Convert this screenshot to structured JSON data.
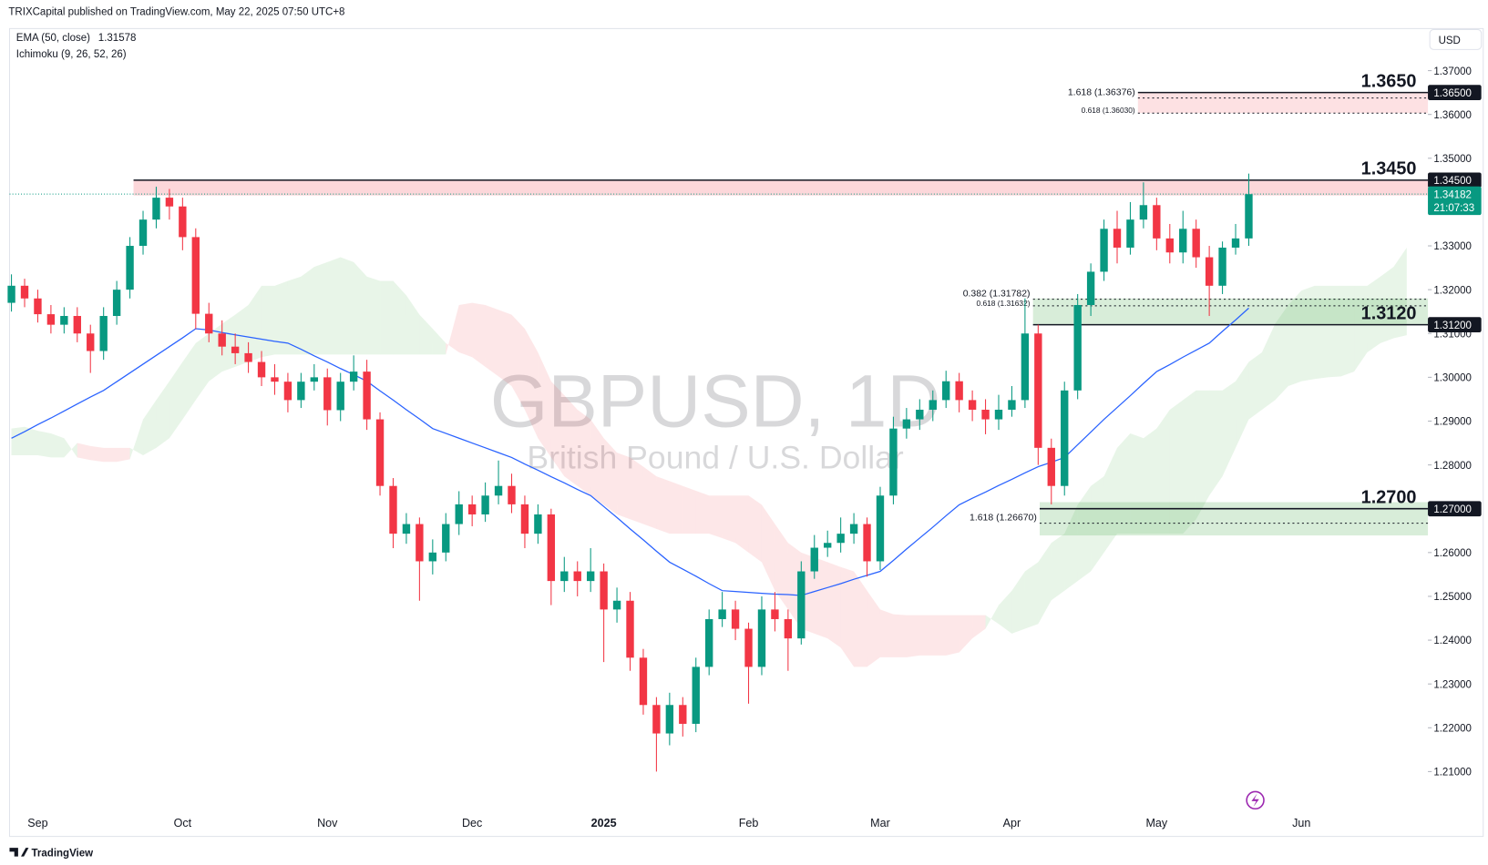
{
  "header": {
    "publisher": "TRIXCapital published on TradingView.com, May 22, 2025 07:50 UTC+8",
    "logo": "TradingView"
  },
  "chart_data": {
    "type": "candlestick",
    "title": "GBPUSD, 1D",
    "subtitle": "British Pound / U.S. Dollar",
    "currency": "USD",
    "indicators": [
      {
        "label": "EMA (50, close)",
        "last": 1.31578,
        "color": "#2962ff"
      },
      {
        "label": "Ichimoku (9, 26, 52, 26)"
      }
    ],
    "categories": [
      null,
      null,
      "Sep",
      null,
      null,
      null,
      null,
      null,
      null,
      null,
      null,
      null,
      null,
      "Oct",
      null,
      null,
      null,
      null,
      null,
      null,
      null,
      null,
      null,
      null,
      "Nov",
      null,
      null,
      null,
      null,
      null,
      null,
      null,
      null,
      null,
      null,
      "Dec",
      null,
      null,
      null,
      null,
      null,
      null,
      null,
      null,
      null,
      "2025",
      null,
      null,
      null,
      null,
      null,
      null,
      null,
      null,
      null,
      null,
      "Feb",
      null,
      null,
      null,
      null,
      null,
      null,
      null,
      null,
      null,
      "Mar",
      null,
      null,
      null,
      null,
      null,
      null,
      null,
      null,
      null,
      "Apr",
      null,
      null,
      null,
      null,
      null,
      null,
      null,
      null,
      null,
      null,
      "May",
      null,
      null,
      null,
      null,
      null,
      null,
      null,
      null,
      null,
      null,
      "Jun",
      null,
      null,
      null,
      null,
      null,
      null,
      null,
      null
    ],
    "up_color": "#089981",
    "down_color": "#f23645",
    "candles": [
      [
        1.317,
        1.3235,
        1.315,
        1.3209
      ],
      [
        1.3209,
        1.3225,
        1.316,
        1.318
      ],
      [
        1.318,
        1.32,
        1.3125,
        1.3144
      ],
      [
        1.3144,
        1.3165,
        1.31,
        1.312
      ],
      [
        1.312,
        1.316,
        1.31,
        1.314
      ],
      [
        1.314,
        1.316,
        1.308,
        1.31
      ],
      [
        1.31,
        1.312,
        1.301,
        1.306
      ],
      [
        1.306,
        1.316,
        1.304,
        1.314
      ],
      [
        1.314,
        1.322,
        1.312,
        1.32
      ],
      [
        1.32,
        1.332,
        1.318,
        1.33
      ],
      [
        1.33,
        1.338,
        1.328,
        1.336
      ],
      [
        1.336,
        1.3435,
        1.334,
        1.341
      ],
      [
        1.341,
        1.343,
        1.336,
        1.339
      ],
      [
        1.339,
        1.341,
        1.329,
        1.332
      ],
      [
        1.332,
        1.334,
        1.311,
        1.3145
      ],
      [
        1.3145,
        1.317,
        1.308,
        1.31
      ],
      [
        1.31,
        1.313,
        1.305,
        1.307
      ],
      [
        1.307,
        1.31,
        1.303,
        1.3055
      ],
      [
        1.3055,
        1.308,
        1.301,
        1.3035
      ],
      [
        1.3035,
        1.306,
        1.298,
        1.3
      ],
      [
        1.3,
        1.303,
        1.296,
        1.299
      ],
      [
        1.299,
        1.301,
        1.292,
        1.2948
      ],
      [
        1.2948,
        1.301,
        1.293,
        1.299
      ],
      [
        1.299,
        1.303,
        1.297,
        1.3
      ],
      [
        1.3,
        1.302,
        1.289,
        1.2925
      ],
      [
        1.2925,
        1.301,
        1.29,
        1.299
      ],
      [
        1.299,
        1.305,
        1.297,
        1.3013
      ],
      [
        1.3013,
        1.304,
        1.288,
        1.2904
      ],
      [
        1.2904,
        1.292,
        1.273,
        1.2752
      ],
      [
        1.2752,
        1.277,
        1.261,
        1.2643
      ],
      [
        1.2643,
        1.269,
        1.262,
        1.2665
      ],
      [
        1.2665,
        1.268,
        1.249,
        1.258
      ],
      [
        1.258,
        1.263,
        1.255,
        1.26
      ],
      [
        1.26,
        1.269,
        1.258,
        1.2665
      ],
      [
        1.2665,
        1.274,
        1.264,
        1.271
      ],
      [
        1.271,
        1.273,
        1.266,
        1.2687
      ],
      [
        1.2687,
        1.276,
        1.267,
        1.273
      ],
      [
        1.273,
        1.281,
        1.271,
        1.2752
      ],
      [
        1.2752,
        1.278,
        1.269,
        1.271
      ],
      [
        1.271,
        1.273,
        1.261,
        1.2643
      ],
      [
        1.2643,
        1.271,
        1.262,
        1.2687
      ],
      [
        1.2687,
        1.27,
        1.248,
        1.2535
      ],
      [
        1.2535,
        1.259,
        1.251,
        1.2557
      ],
      [
        1.2557,
        1.258,
        1.25,
        1.2535
      ],
      [
        1.2535,
        1.261,
        1.251,
        1.2557
      ],
      [
        1.2557,
        1.2575,
        1.235,
        1.247
      ],
      [
        1.247,
        1.252,
        1.244,
        1.249
      ],
      [
        1.249,
        1.251,
        1.233,
        1.236
      ],
      [
        1.236,
        1.238,
        1.223,
        1.2252
      ],
      [
        1.2252,
        1.227,
        1.21,
        1.2187
      ],
      [
        1.2187,
        1.228,
        1.216,
        1.2252
      ],
      [
        1.2252,
        1.227,
        1.218,
        1.2209
      ],
      [
        1.2209,
        1.236,
        1.219,
        1.2339
      ],
      [
        1.2339,
        1.247,
        1.232,
        1.2448
      ],
      [
        1.2448,
        1.251,
        1.243,
        1.247
      ],
      [
        1.247,
        1.249,
        1.24,
        1.2426
      ],
      [
        1.2426,
        1.244,
        1.2255,
        1.2339
      ],
      [
        1.2339,
        1.25,
        1.232,
        1.247
      ],
      [
        1.247,
        1.251,
        1.242,
        1.2448
      ],
      [
        1.2448,
        1.247,
        1.233,
        1.2404
      ],
      [
        1.2404,
        1.258,
        1.239,
        1.2557
      ],
      [
        1.2557,
        1.264,
        1.254,
        1.2611
      ],
      [
        1.2611,
        1.265,
        1.259,
        1.2622
      ],
      [
        1.2622,
        1.268,
        1.26,
        1.2643
      ],
      [
        1.2643,
        1.269,
        1.262,
        1.2665
      ],
      [
        1.2665,
        1.268,
        1.2545,
        1.258
      ],
      [
        1.258,
        1.275,
        1.256,
        1.273
      ],
      [
        1.273,
        1.291,
        1.271,
        1.2883
      ],
      [
        1.2883,
        1.293,
        1.286,
        1.2904
      ],
      [
        1.2904,
        1.295,
        1.288,
        1.2926
      ],
      [
        1.2926,
        1.297,
        1.29,
        1.2948
      ],
      [
        1.2948,
        1.3015,
        1.293,
        1.2991
      ],
      [
        1.2991,
        1.301,
        1.292,
        1.2948
      ],
      [
        1.2948,
        1.297,
        1.29,
        1.2926
      ],
      [
        1.2926,
        1.295,
        1.287,
        1.2904
      ],
      [
        1.2904,
        1.296,
        1.288,
        1.2926
      ],
      [
        1.2926,
        1.298,
        1.291,
        1.2948
      ],
      [
        1.2948,
        1.318,
        1.293,
        1.31
      ],
      [
        1.31,
        1.312,
        1.28,
        1.2839
      ],
      [
        1.2839,
        1.286,
        1.271,
        1.2752
      ],
      [
        1.2752,
        1.299,
        1.273,
        1.297
      ],
      [
        1.297,
        1.319,
        1.295,
        1.3165
      ],
      [
        1.3165,
        1.326,
        1.314,
        1.3241
      ],
      [
        1.3241,
        1.336,
        1.322,
        1.3339
      ],
      [
        1.3339,
        1.338,
        1.326,
        1.3296
      ],
      [
        1.3296,
        1.34,
        1.328,
        1.336
      ],
      [
        1.336,
        1.3445,
        1.334,
        1.3393
      ],
      [
        1.3393,
        1.341,
        1.329,
        1.3317
      ],
      [
        1.3317,
        1.335,
        1.326,
        1.3285
      ],
      [
        1.3285,
        1.338,
        1.326,
        1.3339
      ],
      [
        1.3339,
        1.336,
        1.325,
        1.3274
      ],
      [
        1.3274,
        1.33,
        1.314,
        1.3209
      ],
      [
        1.3209,
        1.331,
        1.319,
        1.3296
      ],
      [
        1.3296,
        1.335,
        1.328,
        1.3317
      ],
      [
        1.3317,
        1.3465,
        1.33,
        1.3418
      ],
      null,
      null,
      null,
      null,
      null,
      null,
      null,
      null,
      null,
      null,
      null,
      null
    ],
    "ema": [
      1.2861,
      1.2876,
      1.2892,
      1.2907,
      1.2923,
      1.2939,
      1.2955,
      1.297,
      1.299,
      1.301,
      1.303,
      1.305,
      1.307,
      1.309,
      1.3111,
      1.3108,
      1.3102,
      1.3097,
      1.3092,
      1.3087,
      1.3082,
      1.3078,
      1.3064,
      1.3049,
      1.3035,
      1.302,
      1.3006,
      1.2991,
      1.2969,
      1.2948,
      1.2926,
      1.2905,
      1.2883,
      1.2872,
      1.2861,
      1.285,
      1.2839,
      1.2828,
      1.2817,
      1.2802,
      1.2788,
      1.2773,
      1.2759,
      1.2744,
      1.273,
      1.2705,
      1.268,
      1.2654,
      1.2629,
      1.2603,
      1.2578,
      1.2562,
      1.2546,
      1.2529,
      1.2513,
      1.2511,
      1.2509,
      1.2507,
      1.2505,
      1.2504,
      1.2502,
      1.2511,
      1.252,
      1.2529,
      1.2539,
      1.2548,
      1.2557,
      1.2582,
      1.2608,
      1.2633,
      1.2658,
      1.2684,
      1.2709,
      1.2724,
      1.2738,
      1.2753,
      1.2767,
      1.2782,
      1.2796,
      1.2806,
      1.2817,
      1.2846,
      1.2875,
      1.2904,
      1.2931,
      1.2958,
      1.2986,
      1.3013,
      1.3029,
      1.3046,
      1.3062,
      1.3078,
      1.3105,
      1.3131,
      1.3158,
      null,
      null,
      null,
      null,
      null,
      null,
      null,
      null,
      null,
      null,
      null,
      null
    ],
    "cloud": {
      "up_color": "rgba(76,175,80,0.13)",
      "down_color": "rgba(242,54,69,0.12)",
      "span_a": [
        1.2883,
        1.2887,
        1.2878,
        1.2872,
        1.2861,
        1.2817,
        1.2811,
        1.2807,
        1.2807,
        1.2813,
        1.2904,
        1.2948,
        1.2991,
        1.3035,
        1.3078,
        1.31,
        1.3122,
        1.3143,
        1.3165,
        1.3209,
        1.3209,
        1.322,
        1.323,
        1.3252,
        1.3263,
        1.3274,
        1.3263,
        1.323,
        1.322,
        1.322,
        1.3187,
        1.3143,
        1.3111,
        1.3078,
        1.3057,
        1.3046,
        1.3024,
        1.3002,
        1.298,
        1.2926,
        1.2861,
        1.2817,
        1.2774,
        1.2752,
        1.273,
        1.2709,
        1.2687,
        1.2676,
        1.2665,
        1.2654,
        1.2643,
        1.2643,
        1.2643,
        1.2643,
        1.2633,
        1.2622,
        1.26,
        1.2578,
        1.2513,
        1.247,
        1.2426,
        1.2415,
        1.2404,
        1.2383,
        1.2339,
        1.2339,
        1.2361,
        1.2361,
        1.2361,
        1.2365,
        1.2365,
        1.2365,
        1.2372,
        1.2404,
        1.2426,
        1.248,
        1.2513,
        1.2557,
        1.2578,
        1.2622,
        1.2643,
        1.2709,
        1.2752,
        1.2774,
        1.2839,
        1.2872,
        1.2861,
        1.2883,
        1.2926,
        1.2948,
        1.297,
        1.297,
        1.297,
        1.2991,
        1.3035,
        1.3057,
        1.3122,
        1.3165,
        1.3198,
        1.3209,
        1.3209,
        1.3209,
        1.3209,
        1.3209,
        1.323,
        1.3252,
        1.3296
      ],
      "span_b": [
        1.2822,
        1.2822,
        1.2822,
        1.2817,
        1.2817,
        1.285,
        1.2843,
        1.2839,
        1.2839,
        1.2839,
        1.2822,
        1.2839,
        1.2861,
        1.2904,
        1.2948,
        1.2991,
        1.3013,
        1.3024,
        1.3035,
        1.3046,
        1.3052,
        1.3052,
        1.3052,
        1.3052,
        1.3052,
        1.3052,
        1.3052,
        1.3052,
        1.3052,
        1.3052,
        1.3052,
        1.3052,
        1.3052,
        1.3052,
        1.3165,
        1.317,
        1.3165,
        1.3154,
        1.3143,
        1.3111,
        1.3057,
        1.2991,
        1.2959,
        1.2926,
        1.2904,
        1.2861,
        1.2828,
        1.2817,
        1.2796,
        1.2774,
        1.2763,
        1.2752,
        1.2741,
        1.273,
        1.273,
        1.273,
        1.273,
        1.2709,
        1.2665,
        1.2622,
        1.26,
        1.2589,
        1.2578,
        1.2567,
        1.2557,
        1.2513,
        1.247,
        1.2459,
        1.2457,
        1.2457,
        1.2457,
        1.2457,
        1.2457,
        1.2457,
        1.2457,
        1.2437,
        1.2415,
        1.2426,
        1.2437,
        1.2491,
        1.2513,
        1.2535,
        1.2557,
        1.26,
        1.2643,
        1.2643,
        1.2643,
        1.2643,
        1.2643,
        1.2643,
        1.2676,
        1.273,
        1.2774,
        1.2839,
        1.2904,
        1.2926,
        1.2948,
        1.298,
        1.2991,
        1.2996,
        1.3,
        1.3002,
        1.3013,
        1.3057,
        1.3078,
        1.3089,
        1.3096
      ]
    },
    "last_price": 1.34182,
    "last_color": "#089981",
    "countdown": "21:07:33",
    "ylim": [
      1.1952,
      1.3796
    ],
    "yticks": [
      {
        "value": 1.21,
        "label": "1.21000"
      },
      {
        "value": 1.22,
        "label": "1.22000"
      },
      {
        "value": 1.23,
        "label": "1.23000"
      },
      {
        "value": 1.24,
        "label": "1.24000"
      },
      {
        "value": 1.25,
        "label": "1.25000"
      },
      {
        "value": 1.26,
        "label": "1.26000"
      },
      {
        "value": 1.27,
        "label": "1.27000"
      },
      {
        "value": 1.28,
        "label": "1.28000"
      },
      {
        "value": 1.29,
        "label": "1.29000"
      },
      {
        "value": 1.3,
        "label": "1.30000"
      },
      {
        "value": 1.31,
        "label": "1.31000"
      },
      {
        "value": 1.32,
        "label": "1.32000"
      },
      {
        "value": 1.33,
        "label": "1.33000"
      },
      {
        "value": 1.34,
        "label": "1.34000"
      },
      {
        "value": 1.35,
        "label": "1.35000"
      },
      {
        "value": 1.36,
        "label": "1.36000"
      },
      {
        "value": 1.37,
        "label": "1.37000"
      }
    ],
    "grid": false,
    "levels": [
      {
        "value": 1.365,
        "label": "1.3650",
        "tag": "1.36500"
      },
      {
        "value": 1.345,
        "label": "1.3450",
        "tag": "1.34500"
      },
      {
        "value": 1.312,
        "label": "1.3120",
        "tag": "1.31200"
      },
      {
        "value": 1.27,
        "label": "1.2700",
        "tag": "1.27000"
      }
    ],
    "fib": [
      {
        "value": 1.36376,
        "label": "1.618 (1.36376)"
      },
      {
        "value": 1.3603,
        "label": "0.618 (1.36030)"
      },
      {
        "value": 1.31782,
        "label": "0.382 (1.31782)"
      },
      {
        "value": 1.31632,
        "label": "0.618 (1.31632)"
      },
      {
        "value": 1.2667,
        "label": "1.618 (1.26670)"
      }
    ],
    "zones": [
      {
        "range": [
          1.3603,
          1.365
        ],
        "color": "rgba(242,54,69,0.15)"
      },
      {
        "range": [
          1.3415,
          1.345
        ],
        "color": "rgba(242,54,69,0.2)"
      },
      {
        "range": [
          1.312,
          1.318
        ],
        "color": "rgba(76,175,80,0.22)"
      },
      {
        "range": [
          1.2639,
          1.2715
        ],
        "color": "rgba(76,175,80,0.22)"
      }
    ]
  }
}
